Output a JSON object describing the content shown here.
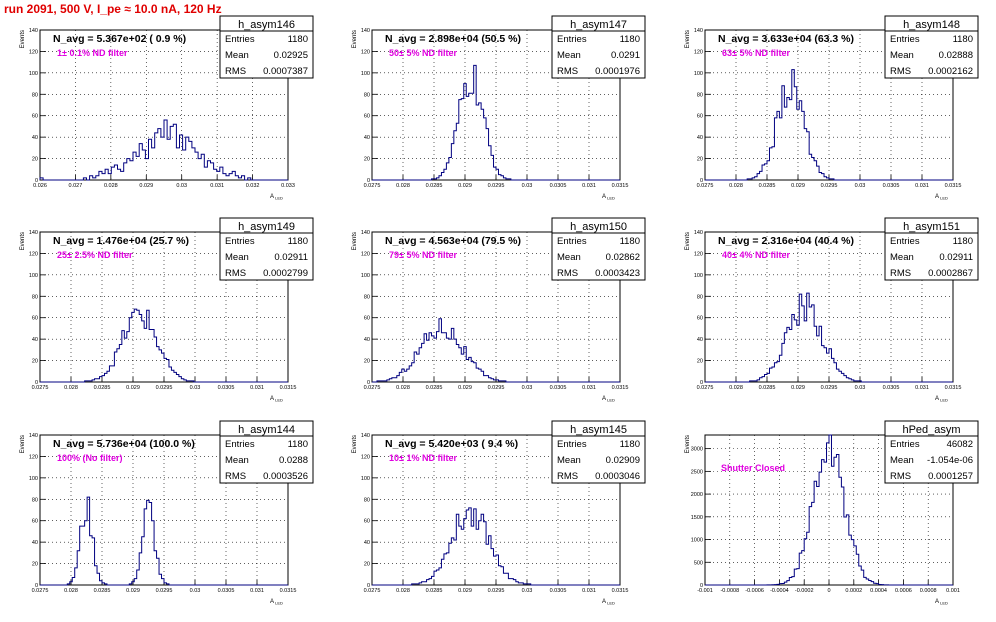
{
  "page_title": "run 2091,   500 V, I_pe ≈ 10.0 nA, 120 Hz",
  "common": {
    "ylabel": "Events",
    "xlabel": "A",
    "xlabel_sub": "LED",
    "stats_labels": {
      "entries": "Entries",
      "mean": "Mean",
      "rms": "RMS"
    }
  },
  "chart_data": [
    {
      "type": "histogram",
      "name": "h_asym146",
      "navg": "N_avg = 5.367e+02 ( 0.9 %)",
      "annotation": "1± 0.1% ND filter",
      "stats": {
        "entries": "1180",
        "mean": "0.02925",
        "rms": "0.0007387"
      },
      "xlim": [
        0.026,
        0.033
      ],
      "xticks": [
        "0.026",
        "0.027",
        "0.028",
        "0.029",
        "0.03",
        "0.031",
        "0.032",
        "0.033"
      ],
      "ylim": [
        0,
        140
      ],
      "yticks": [
        "0",
        "20",
        "40",
        "60",
        "80",
        "100",
        "120",
        "140"
      ],
      "shape": {
        "mu": 0.02925,
        "sigma": 0.0007387,
        "peak": 56
      },
      "counts": [
        2,
        0,
        0,
        0,
        0,
        0,
        0,
        0,
        0,
        0,
        0,
        0,
        0,
        0,
        2,
        0,
        4,
        2,
        4,
        8,
        6,
        10,
        6,
        12,
        14,
        10,
        8,
        16,
        20,
        18,
        26,
        22,
        34,
        28,
        20,
        38,
        30,
        44,
        48,
        40,
        56,
        38,
        50,
        52,
        30,
        42,
        28,
        40,
        36,
        30,
        26,
        20,
        24,
        12,
        18,
        16,
        10,
        8,
        12,
        6,
        4,
        6,
        8,
        4,
        2,
        4,
        0,
        2,
        0,
        0,
        0,
        0,
        0,
        0,
        0,
        0,
        0,
        0,
        0,
        0
      ]
    },
    {
      "type": "histogram",
      "name": "h_asym147",
      "navg": "N_avg = 2.898e+04 (50.5 %)",
      "annotation": "50± 5% ND filter",
      "stats": {
        "entries": "1180",
        "mean": "0.0291",
        "rms": "0.0001976"
      },
      "xlim": [
        0.0275,
        0.0315
      ],
      "xticks": [
        "0.0275",
        "0.028",
        "0.0285",
        "0.029",
        "0.0295",
        "0.03",
        "0.0305",
        "0.031",
        "0.0315"
      ],
      "ylim": [
        0,
        140
      ],
      "yticks": [
        "0",
        "20",
        "40",
        "60",
        "80",
        "100",
        "120",
        "140"
      ],
      "shape": {
        "mu": 0.0291,
        "sigma": 0.0001976,
        "peak": 96
      },
      "counts": []
    },
    {
      "type": "histogram",
      "name": "h_asym148",
      "navg": "N_avg = 3.633e+04 (63.3 %)",
      "annotation": "63± 5% ND filter",
      "stats": {
        "entries": "1180",
        "mean": "0.02888",
        "rms": "0.0002162"
      },
      "xlim": [
        0.0275,
        0.0315
      ],
      "xticks": [
        "0.0275",
        "0.028",
        "0.0285",
        "0.029",
        "0.0295",
        "0.03",
        "0.0305",
        "0.031",
        "0.0315"
      ],
      "ylim": [
        0,
        140
      ],
      "yticks": [
        "0",
        "20",
        "40",
        "60",
        "80",
        "100",
        "120",
        "140"
      ],
      "shape": {
        "mu": 0.02888,
        "sigma": 0.0002162,
        "peak": 90
      },
      "counts": []
    },
    {
      "type": "histogram",
      "name": "h_asym149",
      "navg": "N_avg = 1.476e+04 (25.7 %)",
      "annotation": "25± 2.5% ND filter",
      "stats": {
        "entries": "1180",
        "mean": "0.02911",
        "rms": "0.0002799"
      },
      "xlim": [
        0.0275,
        0.0315
      ],
      "xticks": [
        "0.0275",
        "0.028",
        "0.0285",
        "0.029",
        "0.0295",
        "0.03",
        "0.0305",
        "0.031",
        "0.0315"
      ],
      "ylim": [
        0,
        140
      ],
      "yticks": [
        "0",
        "20",
        "40",
        "60",
        "80",
        "100",
        "120",
        "140"
      ],
      "shape": {
        "mu": 0.02911,
        "sigma": 0.0002799,
        "peak": 64
      },
      "counts": []
    },
    {
      "type": "histogram",
      "name": "h_asym150",
      "navg": "N_avg = 4.563e+04 (79.5 %)",
      "annotation": "79± 5% ND filter",
      "stats": {
        "entries": "1180",
        "mean": "0.02862",
        "rms": "0.0003423"
      },
      "xlim": [
        0.0275,
        0.0315
      ],
      "xticks": [
        "0.0275",
        "0.028",
        "0.0285",
        "0.029",
        "0.0295",
        "0.03",
        "0.0305",
        "0.031",
        "0.0315"
      ],
      "ylim": [
        0,
        140
      ],
      "yticks": [
        "0",
        "20",
        "40",
        "60",
        "80",
        "100",
        "120",
        "140"
      ],
      "shape": {
        "mu": 0.02862,
        "sigma": 0.0003423,
        "peak": 52
      },
      "counts": []
    },
    {
      "type": "histogram",
      "name": "h_asym151",
      "navg": "N_avg = 2.316e+04 (40.4 %)",
      "annotation": "40± 4% ND filter",
      "stats": {
        "entries": "1180",
        "mean": "0.02911",
        "rms": "0.0002867"
      },
      "xlim": [
        0.0275,
        0.0315
      ],
      "xticks": [
        "0.0275",
        "0.028",
        "0.0285",
        "0.029",
        "0.0295",
        "0.03",
        "0.0305",
        "0.031",
        "0.0315"
      ],
      "ylim": [
        0,
        140
      ],
      "yticks": [
        "0",
        "20",
        "40",
        "60",
        "80",
        "100",
        "120",
        "140"
      ],
      "shape": {
        "mu": 0.02911,
        "sigma": 0.0002867,
        "peak": 72
      },
      "counts": []
    },
    {
      "type": "histogram",
      "name": "h_asym144",
      "navg": "N_avg = 5.736e+04 (100.0 %)",
      "annotation": "100% (No filter)",
      "stats": {
        "entries": "1180",
        "mean": "0.0288",
        "rms": "0.0003526"
      },
      "xlim": [
        0.0275,
        0.0315
      ],
      "xticks": [
        "0.0275",
        "0.028",
        "0.0285",
        "0.029",
        "0.0295",
        "0.03",
        "0.0305",
        "0.031",
        "0.0315"
      ],
      "ylim": [
        0,
        140
      ],
      "yticks": [
        "0",
        "20",
        "40",
        "60",
        "80",
        "100",
        "120",
        "140"
      ],
      "shape": {
        "mu": 0.0288,
        "sigma": 0.0003526,
        "peak": 72,
        "bimodal": [
          0.02825,
          0.02925
        ]
      },
      "counts": []
    },
    {
      "type": "histogram",
      "name": "h_asym145",
      "navg": "N_avg = 5.420e+03 ( 9.4 %)",
      "annotation": "10± 1% ND filter",
      "stats": {
        "entries": "1180",
        "mean": "0.02909",
        "rms": "0.0003046"
      },
      "xlim": [
        0.0275,
        0.0315
      ],
      "xticks": [
        "0.0275",
        "0.028",
        "0.0285",
        "0.029",
        "0.0295",
        "0.03",
        "0.0305",
        "0.031",
        "0.0315"
      ],
      "ylim": [
        0,
        140
      ],
      "yticks": [
        "0",
        "20",
        "40",
        "60",
        "80",
        "100",
        "120",
        "140"
      ],
      "shape": {
        "mu": 0.02909,
        "sigma": 0.0003046,
        "peak": 70
      },
      "counts": []
    },
    {
      "type": "histogram",
      "name": "hPed_asym",
      "navg": "",
      "annotation": "Shutter Closed",
      "stats": {
        "entries": "46082",
        "mean": "-1.054e-06",
        "rms": "0.0001257"
      },
      "xlim": [
        -0.001,
        0.001
      ],
      "xticks": [
        "-0.001",
        "-0.0008",
        "-0.0006",
        "-0.0004",
        "-0.0002",
        "0",
        "0.0002",
        "0.0004",
        "0.0006",
        "0.0008",
        "0.001"
      ],
      "ylim": [
        0,
        3300
      ],
      "yticks": [
        "0",
        "500",
        "1000",
        "1500",
        "2000",
        "2500",
        "3000"
      ],
      "shape": {
        "mu": -1.054e-06,
        "sigma": 0.0001257,
        "peak": 3130
      },
      "counts": []
    }
  ],
  "colors": {
    "hist": "#000080",
    "navg": "#000000",
    "annotation": "#e000e0",
    "title": "#e00000"
  }
}
